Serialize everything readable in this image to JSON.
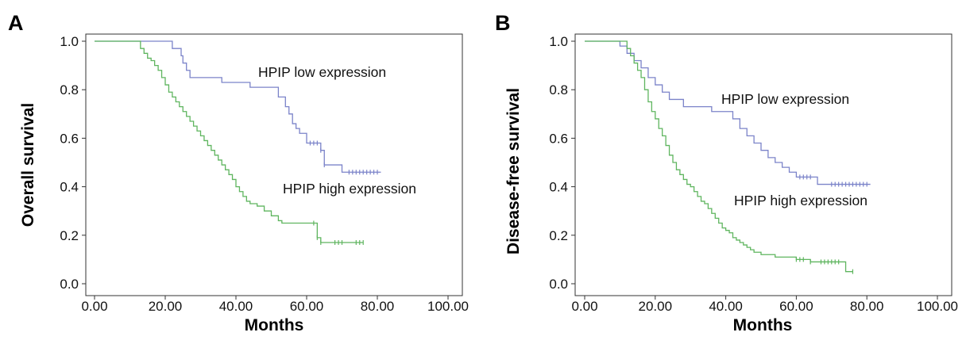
{
  "chart_data": [
    {
      "panel": "A",
      "type": "line",
      "title": "",
      "xlabel": "Months",
      "ylabel": "Overall survival",
      "xlim": [
        0,
        100
      ],
      "ylim": [
        0,
        1
      ],
      "xticks": [
        "0.00",
        "20.00",
        "40.00",
        "60.00",
        "80.00",
        "100.00"
      ],
      "yticks": [
        "0.0",
        "0.2",
        "0.4",
        "0.6",
        "0.8",
        "1.0"
      ],
      "grid": false,
      "legend": "none",
      "series": [
        {
          "name": "HPIP low expression",
          "color": "#7b83c9",
          "step": true,
          "x": [
            0,
            20,
            22,
            24,
            24.5,
            25,
            26,
            27,
            36,
            44,
            52,
            54,
            55,
            56,
            57,
            58,
            60,
            61,
            62,
            64,
            65,
            70,
            81
          ],
          "y": [
            1.0,
            1.0,
            0.97,
            0.97,
            0.94,
            0.91,
            0.88,
            0.85,
            0.83,
            0.81,
            0.77,
            0.73,
            0.7,
            0.66,
            0.64,
            0.62,
            0.58,
            0.58,
            0.58,
            0.55,
            0.49,
            0.46,
            0.46
          ],
          "censored_x": [
            61,
            62,
            63,
            64,
            65,
            72,
            73,
            74,
            75,
            76,
            77,
            78,
            79,
            80
          ],
          "label": "HPIP low expression"
        },
        {
          "name": "HPIP high expression",
          "color": "#5fb55f",
          "step": true,
          "x": [
            0,
            13,
            14,
            15,
            16,
            17,
            18,
            19,
            20,
            21,
            22,
            23,
            24,
            25,
            26,
            27,
            28,
            29,
            30,
            31,
            32,
            33,
            34,
            35,
            36,
            37,
            38,
            39,
            40,
            41,
            42,
            43,
            44,
            46,
            48,
            50,
            52,
            53,
            62,
            63,
            64,
            66,
            76
          ],
          "y": [
            1.0,
            0.97,
            0.95,
            0.93,
            0.92,
            0.9,
            0.88,
            0.85,
            0.82,
            0.79,
            0.77,
            0.75,
            0.73,
            0.71,
            0.69,
            0.67,
            0.65,
            0.63,
            0.61,
            0.59,
            0.57,
            0.55,
            0.53,
            0.51,
            0.49,
            0.47,
            0.45,
            0.43,
            0.4,
            0.38,
            0.36,
            0.34,
            0.33,
            0.32,
            0.3,
            0.28,
            0.26,
            0.25,
            0.25,
            0.19,
            0.17,
            0.17,
            0.17
          ],
          "censored_x": [
            62,
            63,
            64,
            68,
            69,
            70,
            74,
            75,
            76
          ],
          "label": "HPIP high expression"
        }
      ]
    },
    {
      "panel": "B",
      "type": "line",
      "title": "",
      "xlabel": "Months",
      "ylabel": "Disease-free survival",
      "xlim": [
        0,
        100
      ],
      "ylim": [
        0,
        1
      ],
      "xticks": [
        "0.00",
        "20.00",
        "40.00",
        "60.00",
        "80.00",
        "100.00"
      ],
      "yticks": [
        "0.0",
        "0.2",
        "0.4",
        "0.6",
        "0.8",
        "1.0"
      ],
      "grid": false,
      "legend": "none",
      "series": [
        {
          "name": "HPIP low expression",
          "color": "#7b83c9",
          "step": true,
          "x": [
            0,
            10,
            12,
            14,
            16,
            18,
            20,
            22,
            24,
            28,
            32,
            36,
            42,
            44,
            46,
            48,
            50,
            52,
            54,
            56,
            58,
            60,
            62,
            66,
            68,
            70,
            81
          ],
          "y": [
            1.0,
            0.98,
            0.95,
            0.92,
            0.89,
            0.85,
            0.82,
            0.79,
            0.76,
            0.73,
            0.73,
            0.71,
            0.68,
            0.64,
            0.61,
            0.58,
            0.55,
            0.52,
            0.5,
            0.48,
            0.46,
            0.44,
            0.44,
            0.41,
            0.41,
            0.41,
            0.41
          ],
          "censored_x": [
            61,
            62,
            63,
            64,
            70,
            71,
            72,
            73,
            74,
            75,
            76,
            77,
            78,
            79,
            80
          ],
          "label": "HPIP low expression"
        },
        {
          "name": "HPIP high expression",
          "color": "#5fb55f",
          "step": true,
          "x": [
            0,
            12,
            13,
            14,
            15,
            16,
            17,
            18,
            19,
            20,
            21,
            22,
            23,
            24,
            25,
            26,
            27,
            28,
            29,
            30,
            31,
            32,
            33,
            34,
            35,
            36,
            37,
            38,
            39,
            40,
            41,
            42,
            43,
            44,
            45,
            46,
            47,
            48,
            50,
            52,
            54,
            56,
            58,
            60,
            62,
            64,
            66,
            70,
            74,
            76
          ],
          "y": [
            1.0,
            0.97,
            0.94,
            0.91,
            0.88,
            0.85,
            0.8,
            0.75,
            0.71,
            0.68,
            0.64,
            0.61,
            0.57,
            0.53,
            0.5,
            0.47,
            0.45,
            0.43,
            0.41,
            0.4,
            0.38,
            0.36,
            0.34,
            0.33,
            0.31,
            0.29,
            0.27,
            0.25,
            0.23,
            0.22,
            0.21,
            0.19,
            0.18,
            0.17,
            0.16,
            0.15,
            0.14,
            0.13,
            0.12,
            0.12,
            0.11,
            0.11,
            0.11,
            0.1,
            0.1,
            0.09,
            0.09,
            0.09,
            0.05,
            0.05
          ],
          "censored_x": [
            60,
            61,
            62,
            64,
            67,
            68,
            69,
            70,
            71,
            72,
            76
          ],
          "label": "HPIP high expression"
        }
      ]
    }
  ]
}
